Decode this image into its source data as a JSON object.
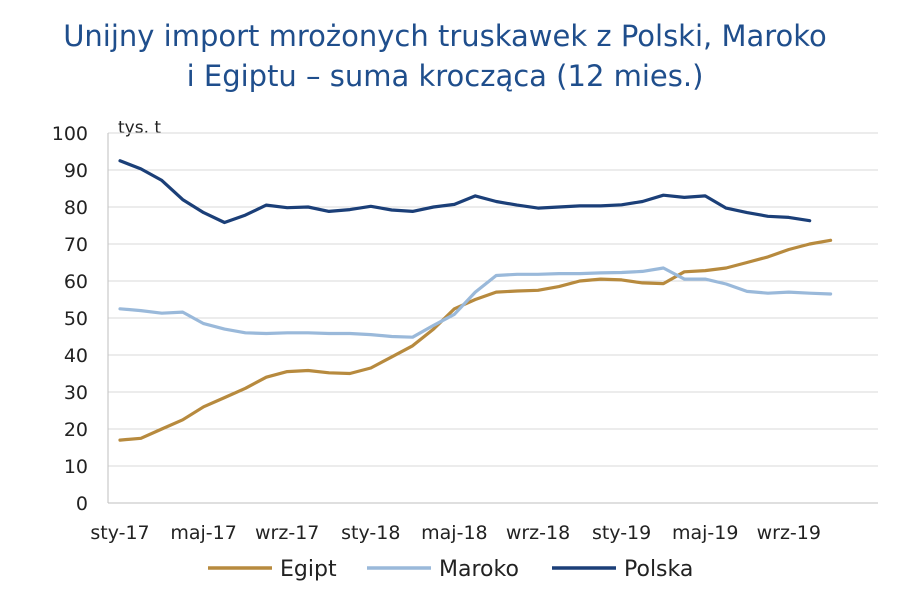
{
  "chart_data": {
    "type": "line",
    "title_lines": [
      "Unijny import mrożonych truskawek z Polski, Maroko",
      "i Egiptu – suma krocząca (12 mies.)"
    ],
    "unit_label": "tys. t",
    "ylim": [
      0,
      100
    ],
    "y_ticks": [
      0,
      10,
      20,
      30,
      40,
      50,
      60,
      70,
      80,
      90,
      100
    ],
    "grid": true,
    "legend_position": "bottom",
    "x": [
      "2017-01",
      "2017-02",
      "2017-03",
      "2017-04",
      "2017-05",
      "2017-06",
      "2017-07",
      "2017-08",
      "2017-09",
      "2017-10",
      "2017-11",
      "2017-12",
      "2018-01",
      "2018-02",
      "2018-03",
      "2018-04",
      "2018-05",
      "2018-06",
      "2018-07",
      "2018-08",
      "2018-09",
      "2018-10",
      "2018-11",
      "2018-12",
      "2019-01",
      "2019-02",
      "2019-03",
      "2019-04",
      "2019-05",
      "2019-06",
      "2019-07",
      "2019-08",
      "2019-09",
      "2019-10",
      "2019-11",
      "2019-12"
    ],
    "x_tick_labels": [
      {
        "x": "2017-01",
        "label": "sty-17"
      },
      {
        "x": "2017-05",
        "label": "maj-17"
      },
      {
        "x": "2017-09",
        "label": "wrz-17"
      },
      {
        "x": "2018-01",
        "label": "sty-18"
      },
      {
        "x": "2018-05",
        "label": "maj-18"
      },
      {
        "x": "2018-09",
        "label": "wrz-18"
      },
      {
        "x": "2019-01",
        "label": "sty-19"
      },
      {
        "x": "2019-05",
        "label": "maj-19"
      },
      {
        "x": "2019-09",
        "label": "wrz-19"
      }
    ],
    "series": [
      {
        "name": "Egipt",
        "color": "#b78a3e",
        "values": [
          17,
          17.5,
          20,
          22.5,
          26,
          28.5,
          31,
          34,
          35.5,
          35.8,
          35.2,
          35,
          36.5,
          39.5,
          42.5,
          47,
          52.5,
          55,
          57,
          57.3,
          57.5,
          58.5,
          60,
          60.5,
          60.3,
          59.5,
          59.3,
          62.5,
          62.8,
          63.5,
          65,
          66.5,
          68.5,
          70,
          71,
          null
        ]
      },
      {
        "name": "Maroko",
        "color": "#9ab9da",
        "values": [
          52.5,
          52,
          51.3,
          51.6,
          48.5,
          47,
          46,
          45.8,
          46,
          46,
          45.8,
          45.8,
          45.5,
          45,
          44.8,
          48,
          51,
          57,
          61.5,
          61.8,
          61.8,
          62,
          62,
          62.2,
          62.3,
          62.6,
          63.5,
          60.5,
          60.5,
          59.2,
          57.2,
          56.7,
          57,
          56.7,
          56.5,
          null
        ]
      },
      {
        "name": "Polska",
        "color": "#1b3f78",
        "values": [
          92.5,
          90.3,
          87.2,
          82,
          78.5,
          75.8,
          77.8,
          80.5,
          79.8,
          80,
          78.8,
          79.3,
          80.2,
          79.2,
          78.8,
          80,
          80.7,
          83,
          81.5,
          80.5,
          79.7,
          80,
          80.3,
          80.3,
          80.6,
          81.5,
          83.2,
          82.6,
          83,
          79.7,
          78.5,
          77.5,
          77.2,
          76.3,
          null,
          null
        ]
      }
    ]
  }
}
